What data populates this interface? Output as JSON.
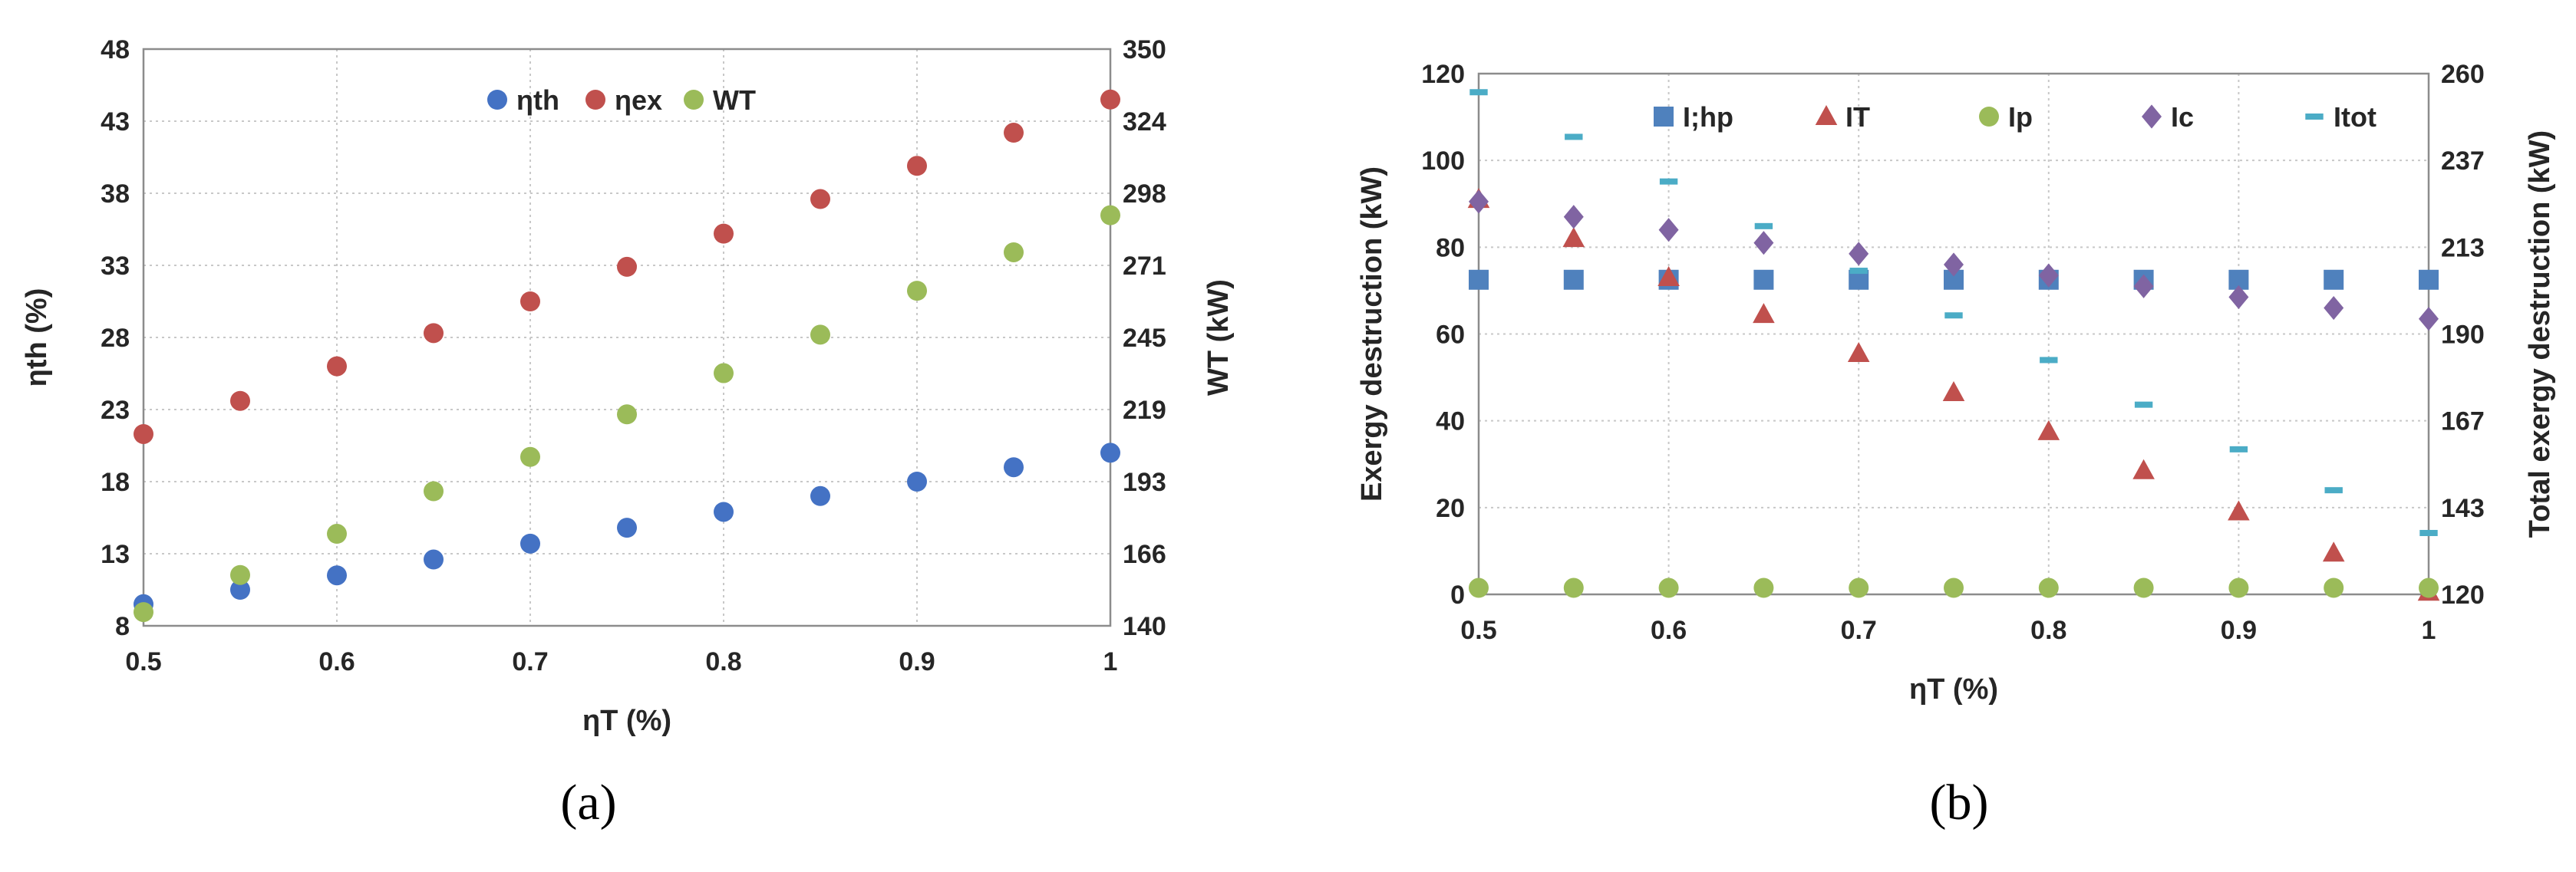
{
  "chart_data": [
    {
      "panel_label": "(a)",
      "type": "scatter",
      "xlabel": "ηT (%)",
      "ylabel": "ηth (%)",
      "y2label": "WT (kW)",
      "xlim": [
        0.5,
        1
      ],
      "ylim": [
        8,
        48
      ],
      "y2lim": [
        140,
        350
      ],
      "xticks": [
        "0.5",
        "0.6",
        "0.7",
        "0.8",
        "0.9",
        "1"
      ],
      "yticks": [
        "8",
        "13",
        "18",
        "23",
        "28",
        "33",
        "38",
        "43",
        "48"
      ],
      "y2ticks": [
        "140",
        "166",
        "193",
        "219",
        "245",
        "271",
        "298",
        "324",
        "350"
      ],
      "x": [
        0.5,
        0.55,
        0.6,
        0.65,
        0.7,
        0.75,
        0.8,
        0.85,
        0.9,
        0.95,
        1.0
      ],
      "series": [
        {
          "name": "ηth",
          "axis": "left",
          "marker": "circle",
          "color": "#4472C4",
          "values": [
            9.5,
            10.5,
            11.5,
            12.6,
            13.7,
            14.8,
            15.9,
            17.0,
            18.0,
            19.0,
            20.0
          ]
        },
        {
          "name": "ηex",
          "axis": "left",
          "marker": "circle",
          "color": "#C0504D",
          "values": [
            21.3,
            23.6,
            26.0,
            28.3,
            30.5,
            32.9,
            35.2,
            37.6,
            39.9,
            42.2,
            44.5
          ]
        },
        {
          "name": "WT",
          "axis": "right",
          "marker": "circle",
          "color": "#9BBB59",
          "values": [
            145.0,
            158.5,
            173.5,
            189.0,
            201.5,
            217.0,
            232.0,
            246.0,
            262.0,
            276.0,
            289.5
          ]
        }
      ],
      "legend": "top-center",
      "grid": true
    },
    {
      "panel_label": "(b)",
      "type": "scatter",
      "xlabel": "ηT (%)",
      "ylabel": "Exergy destruction (kW)",
      "y2label": "Total exergy destruction (kW)",
      "xlim": [
        0.5,
        1
      ],
      "ylim": [
        0,
        120
      ],
      "y2lim": [
        120,
        260
      ],
      "xticks": [
        "0.5",
        "0.6",
        "0.7",
        "0.8",
        "0.9",
        "1"
      ],
      "yticks": [
        "0",
        "20",
        "40",
        "60",
        "80",
        "100",
        "120"
      ],
      "y2ticks": [
        "120",
        "143",
        "167",
        "190",
        "213",
        "237",
        "260"
      ],
      "x": [
        0.5,
        0.55,
        0.6,
        0.65,
        0.7,
        0.75,
        0.8,
        0.85,
        0.9,
        0.95,
        1.0
      ],
      "series": [
        {
          "name": "I;hp",
          "axis": "left",
          "marker": "square",
          "color": "#4F81BD",
          "values": [
            72.5,
            72.5,
            72.5,
            72.5,
            72.5,
            72.5,
            72.5,
            72.5,
            72.5,
            72.5,
            72.5
          ]
        },
        {
          "name": "IT",
          "axis": "left",
          "marker": "triangle",
          "color": "#C0504D",
          "values": [
            91.0,
            82.0,
            73.0,
            64.5,
            55.5,
            46.5,
            37.5,
            28.5,
            19.0,
            9.5,
            0.5
          ]
        },
        {
          "name": "Ip",
          "axis": "left",
          "marker": "circle",
          "color": "#9BBB59",
          "values": [
            1.5,
            1.5,
            1.5,
            1.5,
            1.5,
            1.5,
            1.5,
            1.5,
            1.5,
            1.5,
            1.5
          ]
        },
        {
          "name": "Ic",
          "axis": "left",
          "marker": "diamond",
          "color": "#8064A2",
          "values": [
            90.5,
            87.0,
            84.0,
            81.0,
            78.5,
            76.0,
            73.5,
            71.0,
            68.5,
            66.0,
            63.5
          ]
        },
        {
          "name": "Itot",
          "axis": "right",
          "marker": "dash",
          "color": "#4BACC6",
          "values": [
            255.0,
            243.0,
            231.0,
            219.0,
            207.0,
            195.0,
            183.0,
            171.0,
            159.0,
            148.0,
            136.5
          ]
        }
      ],
      "legend": "top",
      "grid": true
    }
  ]
}
